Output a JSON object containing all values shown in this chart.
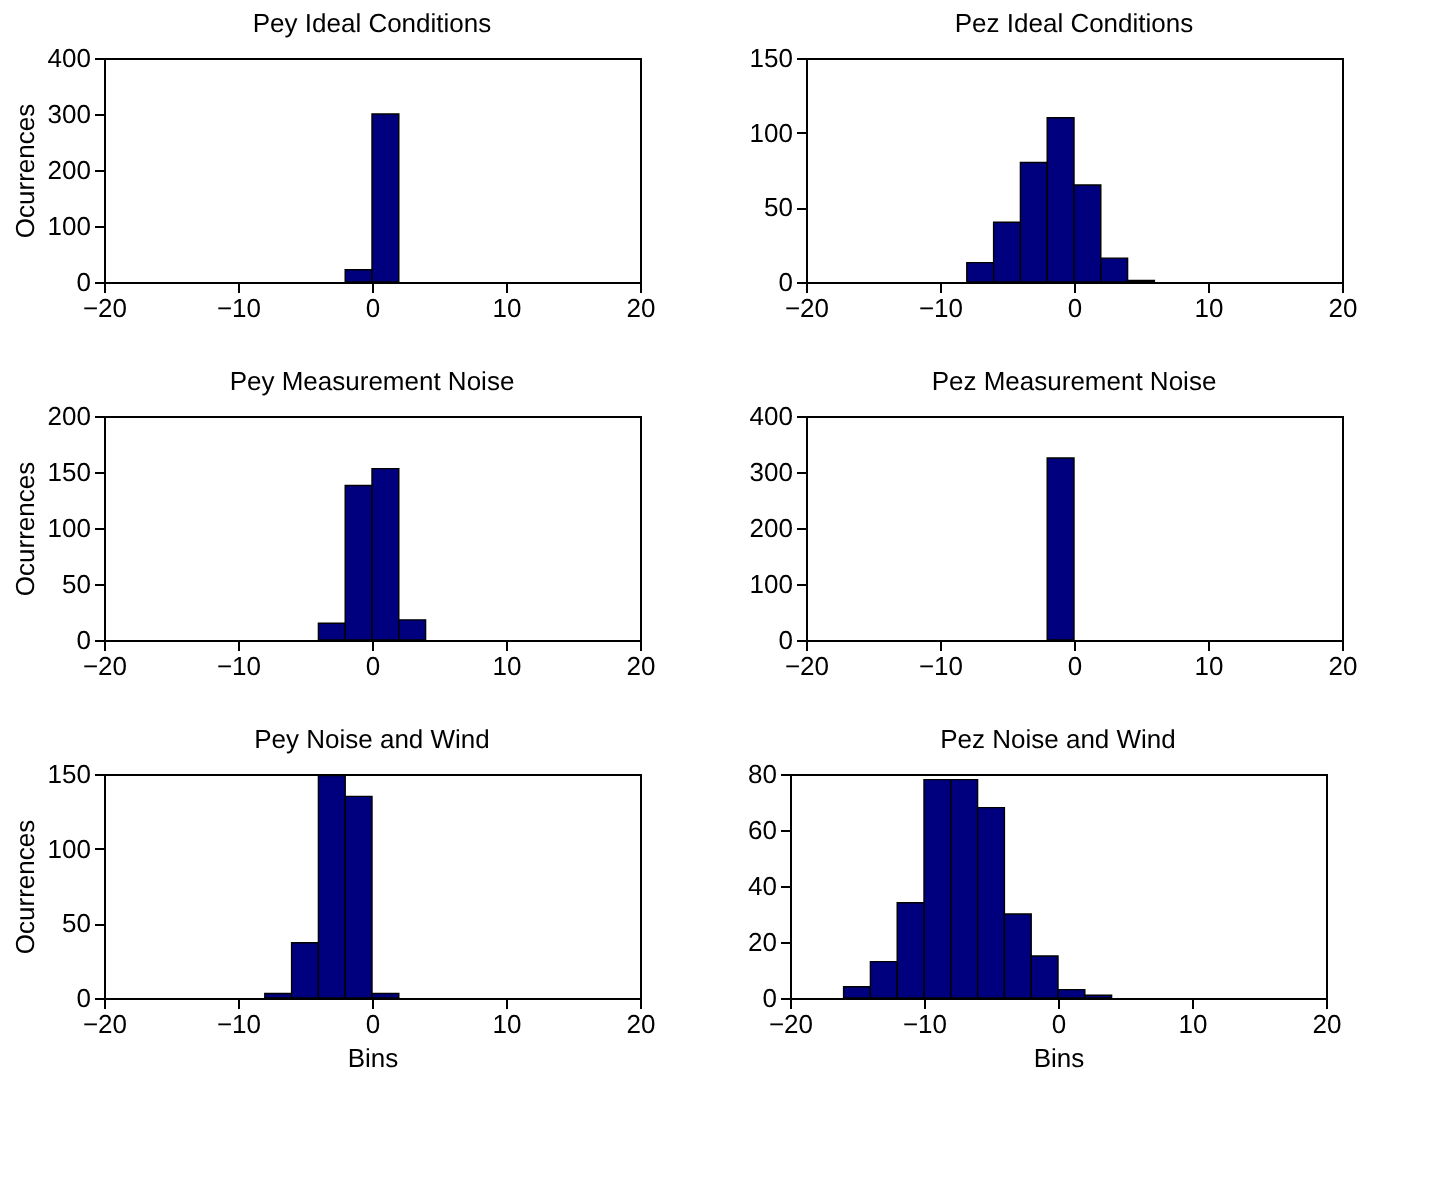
{
  "chart_data": [
    {
      "type": "histogram",
      "title": "Pey Ideal Conditions",
      "ylabel": "Ocurrences",
      "bins": [
        -2,
        0,
        2
      ],
      "values": [
        22,
        300
      ],
      "color": "#00007f",
      "xlim": [
        -20,
        20
      ],
      "xticks": [
        -20,
        -10,
        0,
        10,
        20
      ],
      "ylim": [
        0,
        400
      ],
      "yticks": [
        0,
        100,
        200,
        300,
        400
      ],
      "grid": false
    },
    {
      "type": "histogram",
      "title": "Pez Ideal Conditions",
      "bins": [
        -8,
        -6,
        -4,
        -2,
        0,
        2,
        4,
        6
      ],
      "values": [
        13,
        40,
        80,
        110,
        65,
        16,
        1
      ],
      "color": "#00007f",
      "xlim": [
        -20,
        20
      ],
      "xticks": [
        -20,
        -10,
        0,
        10,
        20
      ],
      "ylim": [
        0,
        150
      ],
      "yticks": [
        0,
        50,
        100,
        150
      ],
      "grid": false
    },
    {
      "type": "histogram",
      "title": "Pey Measurement Noise",
      "ylabel": "Ocurrences",
      "bins": [
        -4,
        -2,
        0,
        2,
        4
      ],
      "values": [
        15,
        138,
        153,
        18
      ],
      "color": "#00007f",
      "xlim": [
        -20,
        20
      ],
      "xticks": [
        -20,
        -10,
        0,
        10,
        20
      ],
      "ylim": [
        0,
        200
      ],
      "yticks": [
        0,
        50,
        100,
        150,
        200
      ],
      "grid": false
    },
    {
      "type": "histogram",
      "title": "Pez Measurement Noise",
      "bins": [
        -2,
        0
      ],
      "values": [
        325
      ],
      "color": "#00007f",
      "xlim": [
        -20,
        20
      ],
      "xticks": [
        -20,
        -10,
        0,
        10,
        20
      ],
      "ylim": [
        0,
        400
      ],
      "yticks": [
        0,
        100,
        200,
        300,
        400
      ],
      "grid": false
    },
    {
      "type": "histogram",
      "title": "Pey Noise and Wind",
      "ylabel": "Ocurrences",
      "xlabel": "Bins",
      "bins": [
        -8,
        -6,
        -4,
        -2,
        0,
        2
      ],
      "values": [
        3,
        37,
        149,
        135,
        3
      ],
      "color": "#00007f",
      "xlim": [
        -20,
        20
      ],
      "xticks": [
        -20,
        -10,
        0,
        10,
        20
      ],
      "ylim": [
        0,
        150
      ],
      "yticks": [
        0,
        50,
        100,
        150
      ],
      "grid": false
    },
    {
      "type": "histogram",
      "title": "Pez Noise and Wind",
      "xlabel": "Bins",
      "bins": [
        -16,
        -14,
        -12,
        -10,
        -8,
        -6,
        -4,
        -2,
        0,
        2,
        4
      ],
      "values": [
        4,
        13,
        34,
        78,
        78,
        68,
        30,
        15,
        3,
        1
      ],
      "color": "#00007f",
      "xlim": [
        -20,
        20
      ],
      "xticks": [
        -20,
        -10,
        0,
        10,
        20
      ],
      "ylim": [
        0,
        80
      ],
      "yticks": [
        0,
        20,
        40,
        60,
        80
      ],
      "grid": false
    }
  ]
}
